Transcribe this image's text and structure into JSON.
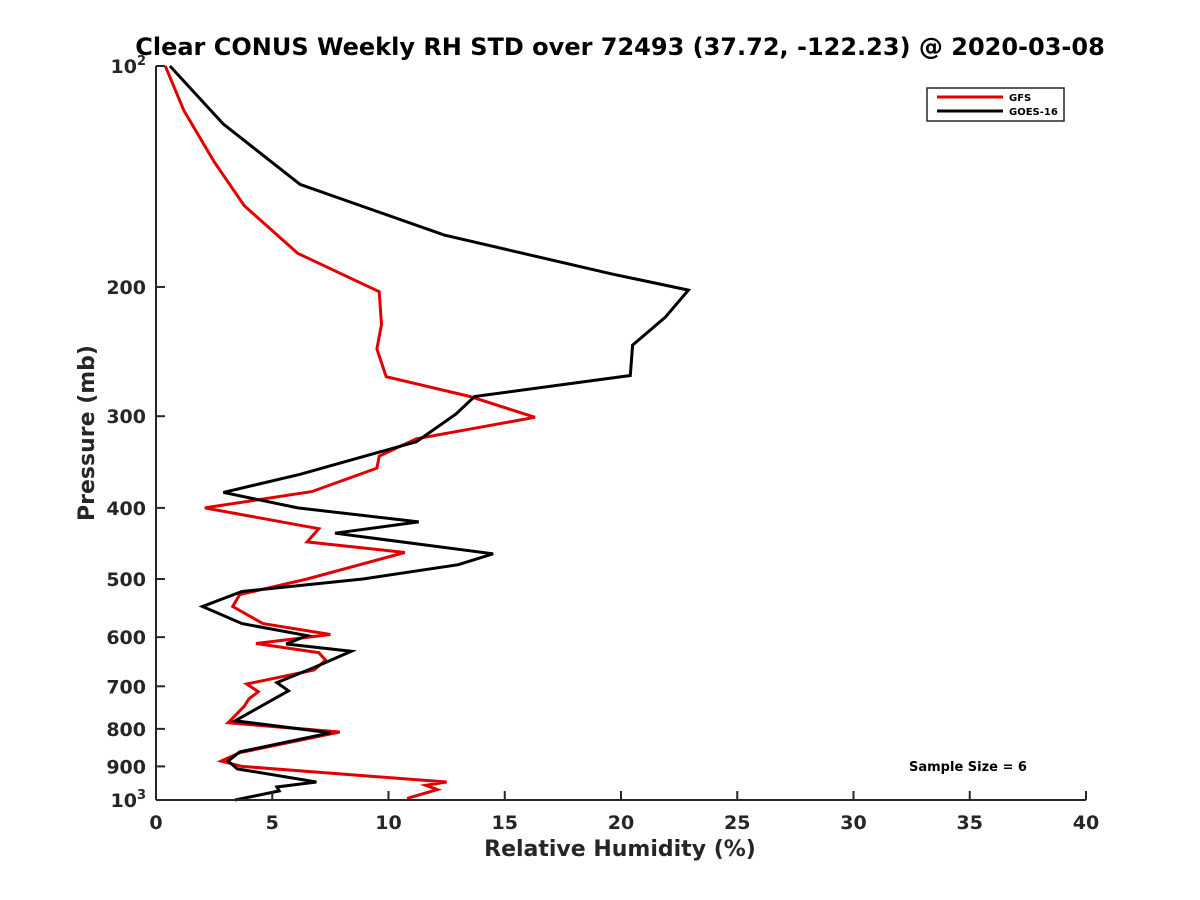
{
  "chart_data": {
    "type": "line",
    "title": "Clear CONUS Weekly RH STD over 72493 (37.72, -122.23) @ 2020-03-08",
    "xlabel": "Relative Humidity (%)",
    "ylabel": "Pressure (mb)",
    "xlim": [
      0,
      40
    ],
    "ylim": [
      100,
      1000
    ],
    "y_scale": "log",
    "y_reversed": true,
    "x_ticks": [
      0,
      5,
      10,
      15,
      20,
      25,
      30,
      35,
      40
    ],
    "x_tick_labels": [
      "0",
      "5",
      "10",
      "15",
      "20",
      "25",
      "30",
      "35",
      "40"
    ],
    "y_ticks": [
      {
        "value": 100,
        "base": "10",
        "exp": "2"
      },
      {
        "value": 200,
        "label": "200"
      },
      {
        "value": 300,
        "label": "300"
      },
      {
        "value": 400,
        "label": "400"
      },
      {
        "value": 500,
        "label": "500"
      },
      {
        "value": 600,
        "label": "600"
      },
      {
        "value": 700,
        "label": "700"
      },
      {
        "value": 800,
        "label": "800"
      },
      {
        "value": 900,
        "label": "900"
      },
      {
        "value": 1000,
        "base": "10",
        "exp": "3"
      }
    ],
    "grid": false,
    "legend_position": "top-right",
    "annotation": "Sample Size = 6",
    "series": [
      {
        "name": "GFS",
        "color": "#e00000",
        "points": [
          [
            0.4,
            100
          ],
          [
            1.2,
            115
          ],
          [
            2.5,
            135
          ],
          [
            3.8,
            155
          ],
          [
            6.1,
            180
          ],
          [
            9.6,
            203
          ],
          [
            9.7,
            225
          ],
          [
            9.5,
            243
          ],
          [
            9.9,
            265
          ],
          [
            13.5,
            282
          ],
          [
            16.3,
            301
          ],
          [
            11.2,
            322
          ],
          [
            9.6,
            340
          ],
          [
            9.5,
            353
          ],
          [
            6.7,
            380
          ],
          [
            2.1,
            400
          ],
          [
            7.0,
            427
          ],
          [
            6.5,
            445
          ],
          [
            10.7,
            460
          ],
          [
            6.5,
            500
          ],
          [
            3.6,
            525
          ],
          [
            3.3,
            545
          ],
          [
            4.6,
            575
          ],
          [
            7.5,
            595
          ],
          [
            4.3,
            612
          ],
          [
            7.0,
            630
          ],
          [
            7.3,
            645
          ],
          [
            6.8,
            665
          ],
          [
            3.9,
            695
          ],
          [
            4.4,
            712
          ],
          [
            4.0,
            728
          ],
          [
            3.8,
            745
          ],
          [
            3.1,
            785
          ],
          [
            7.9,
            808
          ],
          [
            3.6,
            862
          ],
          [
            2.8,
            885
          ],
          [
            3.7,
            900
          ],
          [
            12.5,
            945
          ],
          [
            11.6,
            955
          ],
          [
            12.1,
            968
          ],
          [
            10.8,
            995
          ]
        ]
      },
      {
        "name": "GOES-16",
        "color": "#000000",
        "points": [
          [
            0.6,
            100
          ],
          [
            2.9,
            120
          ],
          [
            6.2,
            145
          ],
          [
            12.4,
            170
          ],
          [
            19.6,
            192
          ],
          [
            22.9,
            202
          ],
          [
            21.9,
            220
          ],
          [
            20.5,
            240
          ],
          [
            20.4,
            264
          ],
          [
            13.7,
            282
          ],
          [
            12.9,
            298
          ],
          [
            11.2,
            325
          ],
          [
            6.2,
            360
          ],
          [
            2.9,
            381
          ],
          [
            6.1,
            400
          ],
          [
            11.3,
            418
          ],
          [
            7.7,
            433
          ],
          [
            14.5,
            462
          ],
          [
            13.0,
            478
          ],
          [
            8.9,
            500
          ],
          [
            3.7,
            520
          ],
          [
            2.0,
            545
          ],
          [
            3.7,
            575
          ],
          [
            6.5,
            597
          ],
          [
            5.6,
            613
          ],
          [
            8.4,
            627
          ],
          [
            6.8,
            660
          ],
          [
            5.2,
            692
          ],
          [
            5.7,
            710
          ],
          [
            3.4,
            780
          ],
          [
            7.5,
            810
          ],
          [
            3.6,
            860
          ],
          [
            3.1,
            885
          ],
          [
            3.5,
            907
          ],
          [
            6.9,
            945
          ],
          [
            5.2,
            960
          ],
          [
            5.3,
            972
          ],
          [
            3.4,
            1000
          ]
        ]
      }
    ]
  }
}
